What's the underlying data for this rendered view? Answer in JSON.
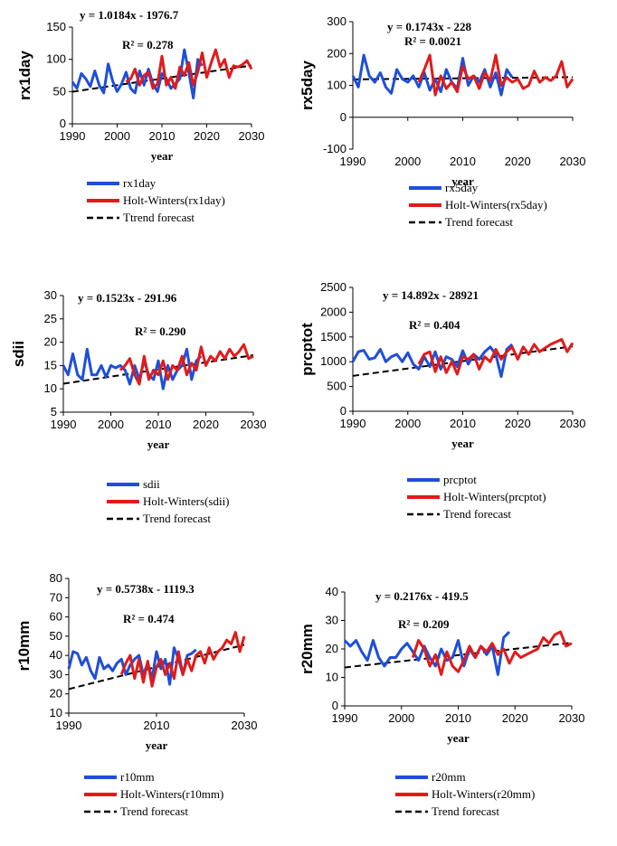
{
  "legend_labels": {
    "trend": "Ttrend forecast",
    "trend_std": "Trend forecast"
  },
  "chart_data": [
    {
      "type": "line",
      "key": "rx1day",
      "ylabel": "rx1day",
      "xlabel": "year",
      "xlim": [
        1990,
        2030
      ],
      "ylim": [
        0,
        150
      ],
      "xticks": [
        1990,
        2000,
        2010,
        2020,
        2030
      ],
      "yticks": [
        0,
        50,
        100,
        150
      ],
      "equation": "y = 1.0184x - 1976.7",
      "r2": "R² = 0.278",
      "legend": [
        "rx1day",
        "Holt-Winters(rx1day)",
        "Ttrend forecast"
      ],
      "trend_line": {
        "x": [
          1990,
          2030
        ],
        "y": [
          49.8,
          90.5
        ]
      },
      "series": [
        {
          "name": "rx1day",
          "color": "#1f4fd8",
          "x": [
            1990,
            1991,
            1992,
            1993,
            1994,
            1995,
            1996,
            1997,
            1998,
            1999,
            2000,
            2001,
            2002,
            2003,
            2004,
            2005,
            2006,
            2007,
            2008,
            2009,
            2010,
            2011,
            2012,
            2013,
            2014,
            2015,
            2016,
            2017,
            2018,
            2019
          ],
          "y": [
            65,
            55,
            78,
            70,
            58,
            82,
            60,
            48,
            93,
            66,
            50,
            62,
            80,
            55,
            48,
            82,
            60,
            85,
            62,
            50,
            78,
            70,
            55,
            62,
            70,
            115,
            80,
            40,
            100,
            90
          ]
        },
        {
          "name": "Holt-Winters(rx1day)",
          "color": "#e01b1b",
          "x": [
            2002,
            2003,
            2004,
            2005,
            2006,
            2007,
            2008,
            2009,
            2010,
            2011,
            2012,
            2013,
            2014,
            2015,
            2016,
            2017,
            2018,
            2019,
            2020,
            2021,
            2022,
            2023,
            2024,
            2025,
            2026,
            2027,
            2028,
            2029,
            2030
          ],
          "y": [
            65,
            70,
            85,
            60,
            75,
            80,
            55,
            62,
            105,
            60,
            72,
            55,
            88,
            75,
            95,
            60,
            80,
            110,
            72,
            95,
            115,
            88,
            100,
            72,
            90,
            88,
            92,
            98,
            85
          ]
        }
      ]
    },
    {
      "type": "line",
      "key": "rx5day",
      "ylabel": "rx5day",
      "xlabel": "year",
      "xlim": [
        1990,
        2030
      ],
      "ylim": [
        -100,
        300
      ],
      "xticks": [
        1990,
        2000,
        2010,
        2020,
        2030
      ],
      "yticks": [
        -100,
        0,
        100,
        200,
        300
      ],
      "equation": "y = 0.1743x - 228",
      "r2": "R² = 0.0021",
      "legend": [
        "rx5day",
        "Holt-Winters(rx5day)",
        "Trend forecast"
      ],
      "trend_line": {
        "x": [
          1990,
          2030
        ],
        "y": [
          118.9,
          125.9
        ]
      },
      "series": [
        {
          "name": "rx5day",
          "color": "#1f4fd8",
          "x": [
            1990,
            1991,
            1992,
            1993,
            1994,
            1995,
            1996,
            1997,
            1998,
            1999,
            2000,
            2001,
            2002,
            2003,
            2004,
            2005,
            2006,
            2007,
            2008,
            2009,
            2010,
            2011,
            2012,
            2013,
            2014,
            2015,
            2016,
            2017,
            2018,
            2019
          ],
          "y": [
            130,
            95,
            195,
            130,
            110,
            140,
            95,
            75,
            150,
            120,
            110,
            130,
            95,
            140,
            85,
            120,
            80,
            150,
            110,
            90,
            185,
            100,
            130,
            110,
            150,
            95,
            140,
            70,
            150,
            125
          ]
        },
        {
          "name": "Holt-Winters(rx5day)",
          "color": "#e01b1b",
          "x": [
            2002,
            2003,
            2004,
            2005,
            2006,
            2007,
            2008,
            2009,
            2010,
            2011,
            2012,
            2013,
            2014,
            2015,
            2016,
            2017,
            2018,
            2019,
            2020,
            2021,
            2022,
            2023,
            2024,
            2025,
            2026,
            2027,
            2028,
            2029,
            2030
          ],
          "y": [
            110,
            150,
            195,
            70,
            130,
            90,
            110,
            80,
            160,
            120,
            130,
            90,
            140,
            115,
            195,
            100,
            125,
            110,
            120,
            90,
            100,
            145,
            110,
            125,
            115,
            130,
            175,
            95,
            120
          ]
        }
      ]
    },
    {
      "type": "line",
      "key": "sdii",
      "ylabel": "sdii",
      "xlabel": "year",
      "xlim": [
        1990,
        2030
      ],
      "ylim": [
        5,
        30
      ],
      "xticks": [
        1990,
        2000,
        2010,
        2020,
        2030
      ],
      "yticks": [
        5,
        10,
        15,
        20,
        25,
        30
      ],
      "equation": "y = 0.1523x - 291.96",
      "r2": "R² = 0.290",
      "legend": [
        "sdii",
        "Holt-Winters(sdii)",
        "Trend forecast"
      ],
      "trend_line": {
        "x": [
          1990,
          2030
        ],
        "y": [
          11.1,
          17.2
        ]
      },
      "series": [
        {
          "name": "sdii",
          "color": "#1f4fd8",
          "x": [
            1990,
            1991,
            1992,
            1993,
            1994,
            1995,
            1996,
            1997,
            1998,
            1999,
            2000,
            2001,
            2002,
            2003,
            2004,
            2005,
            2006,
            2007,
            2008,
            2009,
            2010,
            2011,
            2012,
            2013,
            2014,
            2015,
            2016,
            2017,
            2018,
            2019
          ],
          "y": [
            15,
            13,
            17.5,
            13,
            12,
            18.5,
            13,
            13,
            15,
            12.5,
            15,
            14.5,
            15,
            14,
            11,
            15,
            12,
            16,
            13,
            12,
            16,
            10,
            15,
            12,
            14,
            15,
            18.5,
            12,
            16,
            17
          ]
        },
        {
          "name": "Holt-Winters(sdii)",
          "color": "#e01b1b",
          "x": [
            2002,
            2003,
            2004,
            2005,
            2006,
            2007,
            2008,
            2009,
            2010,
            2011,
            2012,
            2013,
            2014,
            2015,
            2016,
            2017,
            2018,
            2019,
            2020,
            2021,
            2022,
            2023,
            2024,
            2025,
            2026,
            2027,
            2028,
            2029,
            2030
          ],
          "y": [
            14,
            15,
            16.5,
            13,
            11,
            17,
            12,
            14,
            13,
            16,
            12,
            15,
            14,
            17,
            13,
            15.5,
            14,
            19,
            15,
            17,
            16,
            18,
            16.5,
            18.5,
            17,
            18,
            19.5,
            16.5,
            17
          ]
        }
      ]
    },
    {
      "type": "line",
      "key": "prcptot",
      "ylabel": "prcptot",
      "xlabel": "year",
      "xlim": [
        1990,
        2030
      ],
      "ylim": [
        0,
        2500
      ],
      "xticks": [
        1990,
        2000,
        2010,
        2020,
        2030
      ],
      "yticks": [
        0,
        500,
        1000,
        1500,
        2000,
        2500
      ],
      "equation": "y = 14.892x - 28921",
      "r2": "R² = 0.404",
      "legend": [
        "prcptot",
        "Holt-Winters(prcptot)",
        "Trend forecast"
      ],
      "trend_line": {
        "x": [
          1990,
          2030
        ],
        "y": [
          714,
          1310
        ]
      },
      "series": [
        {
          "name": "prcptot",
          "color": "#1f4fd8",
          "x": [
            1990,
            1991,
            1992,
            1993,
            1994,
            1995,
            1996,
            1997,
            1998,
            1999,
            2000,
            2001,
            2002,
            2003,
            2004,
            2005,
            2006,
            2007,
            2008,
            2009,
            2010,
            2011,
            2012,
            2013,
            2014,
            2015,
            2016,
            2017,
            2018,
            2019
          ],
          "y": [
            1000,
            1200,
            1230,
            1050,
            1080,
            1250,
            1000,
            1100,
            1150,
            1000,
            1180,
            950,
            850,
            1100,
            900,
            1200,
            850,
            1100,
            1050,
            900,
            1220,
            950,
            1150,
            1050,
            1200,
            1300,
            1150,
            700,
            1250,
            1350
          ]
        },
        {
          "name": "Holt-Winters(prcptot)",
          "color": "#e01b1b",
          "x": [
            2002,
            2003,
            2004,
            2005,
            2006,
            2007,
            2008,
            2009,
            2010,
            2011,
            2012,
            2013,
            2014,
            2015,
            2016,
            2017,
            2018,
            2019,
            2020,
            2021,
            2022,
            2023,
            2024,
            2025,
            2026,
            2027,
            2028,
            2029,
            2030
          ],
          "y": [
            950,
            1150,
            1200,
            800,
            1100,
            780,
            1000,
            750,
            1100,
            1050,
            1150,
            850,
            1100,
            1000,
            1250,
            1050,
            1200,
            1300,
            1050,
            1300,
            1150,
            1350,
            1200,
            1280,
            1350,
            1400,
            1450,
            1200,
            1380
          ]
        }
      ]
    },
    {
      "type": "line",
      "key": "r10mm",
      "ylabel": "r10mm",
      "xlabel": "year",
      "xlim": [
        1990,
        2030
      ],
      "ylim": [
        10,
        80
      ],
      "xticks": [
        1990,
        2010,
        2030
      ],
      "yticks": [
        10,
        20,
        30,
        40,
        50,
        60,
        70,
        80
      ],
      "equation": "y = 0.5738x - 1119.3",
      "r2": "R² = 0.474",
      "legend": [
        "r10mm",
        "Holt-Winters(r10mm)",
        "Trend forecast"
      ],
      "trend_line": {
        "x": [
          1990,
          2030
        ],
        "y": [
          22.5,
          45.5
        ]
      },
      "series": [
        {
          "name": "r10mm",
          "color": "#1f4fd8",
          "x": [
            1990,
            1991,
            1992,
            1993,
            1994,
            1995,
            1996,
            1997,
            1998,
            1999,
            2000,
            2001,
            2002,
            2003,
            2004,
            2005,
            2006,
            2007,
            2008,
            2009,
            2010,
            2011,
            2012,
            2013,
            2014,
            2015,
            2016,
            2017,
            2018,
            2019
          ],
          "y": [
            33,
            42,
            41,
            35,
            39,
            32,
            28,
            39,
            33,
            35,
            32,
            36,
            38,
            30,
            35,
            38,
            40,
            30,
            36,
            28,
            42,
            33,
            38,
            25,
            44,
            38,
            30,
            40,
            41,
            43
          ]
        },
        {
          "name": "Holt-Winters(r10mm)",
          "color": "#e01b1b",
          "x": [
            2002,
            2003,
            2004,
            2005,
            2006,
            2007,
            2008,
            2009,
            2010,
            2011,
            2012,
            2013,
            2014,
            2015,
            2016,
            2017,
            2018,
            2019,
            2020,
            2021,
            2022,
            2023,
            2024,
            2025,
            2026,
            2027,
            2028,
            2029,
            2030
          ],
          "y": [
            30,
            36,
            40,
            28,
            38,
            26,
            37,
            24,
            34,
            38,
            30,
            36,
            28,
            42,
            30,
            38,
            32,
            40,
            42,
            36,
            44,
            38,
            42,
            44,
            48,
            46,
            52,
            42,
            50
          ]
        }
      ]
    },
    {
      "type": "line",
      "key": "r20mm",
      "ylabel": "r20mm",
      "xlabel": "year",
      "xlim": [
        1990,
        2030
      ],
      "ylim": [
        0,
        40
      ],
      "xticks": [
        1990,
        2000,
        2010,
        2020,
        2030
      ],
      "yticks": [
        0,
        10,
        20,
        30,
        40
      ],
      "equation": "y = 0.2176x - 419.5",
      "r2": "R² = 0.209",
      "legend": [
        "r20mm",
        "Holt-Winters(r20mm)",
        "Trend forecast"
      ],
      "trend_line": {
        "x": [
          1990,
          2030
        ],
        "y": [
          13.5,
          22.2
        ]
      },
      "series": [
        {
          "name": "r20mm",
          "color": "#1f4fd8",
          "x": [
            1990,
            1991,
            1992,
            1993,
            1994,
            1995,
            1996,
            1997,
            1998,
            1999,
            2000,
            2001,
            2002,
            2003,
            2004,
            2005,
            2006,
            2007,
            2008,
            2009,
            2010,
            2011,
            2012,
            2013,
            2014,
            2015,
            2016,
            2017,
            2018,
            2019
          ],
          "y": [
            23,
            21,
            23,
            19,
            16,
            23,
            17,
            14,
            17,
            17,
            20,
            22,
            19,
            16,
            21,
            17,
            14,
            20,
            16,
            17,
            23,
            14,
            20,
            17,
            21,
            18,
            21,
            11,
            24,
            26
          ]
        },
        {
          "name": "Holt-Winters(r20mm)",
          "color": "#e01b1b",
          "x": [
            2002,
            2003,
            2004,
            2005,
            2006,
            2007,
            2008,
            2009,
            2010,
            2011,
            2012,
            2013,
            2014,
            2015,
            2016,
            2017,
            2018,
            2019,
            2020,
            2021,
            2022,
            2023,
            2024,
            2025,
            2026,
            2027,
            2028,
            2029,
            2030
          ],
          "y": [
            17,
            23,
            20,
            14,
            18,
            11,
            19,
            14,
            12,
            16,
            21,
            17,
            21,
            19,
            22,
            18,
            20,
            15,
            19,
            17,
            18,
            19,
            20,
            24,
            22,
            25,
            26,
            21,
            22
          ]
        }
      ]
    }
  ]
}
